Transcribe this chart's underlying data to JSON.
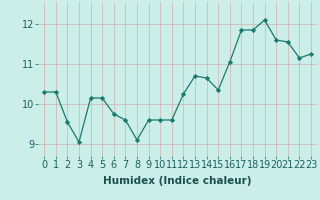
{
  "x": [
    0,
    1,
    2,
    3,
    4,
    5,
    6,
    7,
    8,
    9,
    10,
    11,
    12,
    13,
    14,
    15,
    16,
    17,
    18,
    19,
    20,
    21,
    22,
    23
  ],
  "y": [
    10.3,
    10.3,
    9.55,
    9.05,
    10.15,
    10.15,
    9.75,
    9.6,
    9.1,
    9.6,
    9.6,
    9.6,
    10.25,
    10.7,
    10.65,
    10.35,
    11.05,
    11.85,
    11.85,
    12.1,
    11.6,
    11.55,
    11.15,
    11.25
  ],
  "xlabel": "Humidex (Indice chaleur)",
  "ylim": [
    8.7,
    12.55
  ],
  "yticks": [
    9,
    10,
    11,
    12
  ],
  "xticks": [
    0,
    1,
    2,
    3,
    4,
    5,
    6,
    7,
    8,
    9,
    10,
    11,
    12,
    13,
    14,
    15,
    16,
    17,
    18,
    19,
    20,
    21,
    22,
    23
  ],
  "line_color": "#1a7a6e",
  "marker": "D",
  "marker_size": 2.2,
  "bg_color": "#cceee8",
  "grid_color_h": "#d4a0a0",
  "grid_color_v": "#d4a0a0",
  "fig_bg": "#cceee8",
  "xlabel_fontsize": 7.5,
  "tick_fontsize": 7,
  "tick_color": "#1a6060",
  "xlabel_color": "#1a5050"
}
